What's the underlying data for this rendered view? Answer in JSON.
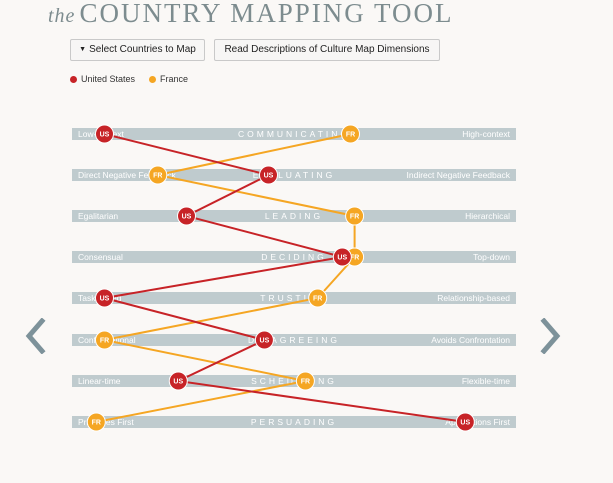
{
  "header": {
    "title_prefix": "the",
    "title_main": "COUNTRY MAPPING TOOL"
  },
  "toolbar": {
    "select_label": "Select Countries to Map",
    "descriptions_label": "Read Descriptions of Culture Map Dimensions"
  },
  "colors": {
    "us": "#c72327",
    "fr": "#f5a623",
    "track": "#bfcbce",
    "nav": "#7d929a"
  },
  "legend": [
    {
      "name": "United States",
      "color": "#c72327"
    },
    {
      "name": "France",
      "color": "#f5a623"
    }
  ],
  "dimensions": [
    {
      "name": "COMMUNICATING",
      "left": "Low-context",
      "right": "High-context"
    },
    {
      "name": "EVALUATING",
      "left": "Direct Negative Feedback",
      "right": "Indirect Negative Feedback"
    },
    {
      "name": "LEADING",
      "left": "Egalitarian",
      "right": "Hierarchical"
    },
    {
      "name": "DECIDING",
      "left": "Consensual",
      "right": "Top-down"
    },
    {
      "name": "TRUSTING",
      "left": "Task-based",
      "right": "Relationship-based"
    },
    {
      "name": "DISAGREEING",
      "left": "Confrontational",
      "right": "Avoids Confrontation"
    },
    {
      "name": "SCHEDULING",
      "left": "Linear-time",
      "right": "Flexible-time"
    },
    {
      "name": "PERSUADING",
      "left": "Principles First",
      "right": "Applications First"
    }
  ],
  "chart_data": {
    "type": "scatter",
    "xlim": [
      0,
      100
    ],
    "categories": [
      "COMMUNICATING",
      "EVALUATING",
      "LEADING",
      "DECIDING",
      "TRUSTING",
      "DISAGREEING",
      "SCHEDULING",
      "PERSUADING"
    ],
    "series": [
      {
        "name": "United States",
        "marker": "US",
        "color": "#c72327",
        "values": [
          5,
          45,
          25,
          63,
          5,
          44,
          23,
          93
        ]
      },
      {
        "name": "France",
        "marker": "FR",
        "color": "#f5a623",
        "values": [
          65,
          18,
          66,
          66,
          57,
          5,
          54,
          3
        ]
      }
    ]
  }
}
